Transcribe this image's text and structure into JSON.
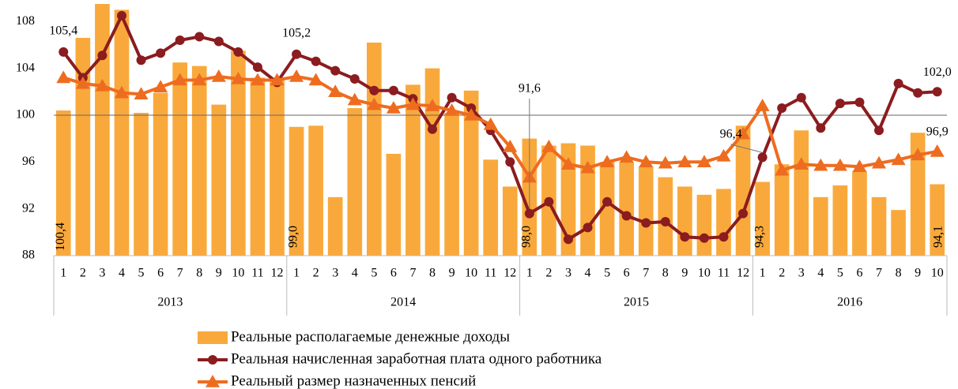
{
  "chart_data": {
    "type": "combo",
    "categories": [
      "1",
      "2",
      "3",
      "4",
      "5",
      "6",
      "7",
      "8",
      "9",
      "10",
      "11",
      "12",
      "1",
      "2",
      "3",
      "4",
      "5",
      "6",
      "7",
      "8",
      "9",
      "10",
      "11",
      "12",
      "1",
      "2",
      "3",
      "4",
      "5",
      "6",
      "7",
      "8",
      "9",
      "10",
      "11",
      "12",
      "1",
      "2",
      "3",
      "4",
      "5",
      "6",
      "7",
      "8",
      "9",
      "10"
    ],
    "x_groups": [
      "2013",
      "2014",
      "2015",
      "2016"
    ],
    "ylim": [
      88,
      109.5
    ],
    "yticks": [
      88,
      92,
      96,
      100,
      104,
      108
    ],
    "hline": 100,
    "series": [
      {
        "name": "Реальные располагаемые денежные доходы",
        "type": "bar",
        "color": "#f9a93b",
        "values": [
          100.4,
          106.6,
          109.5,
          109.0,
          100.2,
          101.9,
          104.5,
          104.2,
          100.9,
          105.5,
          103.2,
          103.2,
          99.0,
          99.1,
          93.0,
          100.6,
          106.2,
          96.7,
          102.6,
          104.0,
          100.2,
          102.1,
          96.2,
          93.9,
          98.0,
          97.4,
          97.6,
          97.4,
          96.0,
          96.0,
          95.6,
          94.7,
          93.9,
          93.2,
          93.7,
          99.1,
          94.3,
          95.8,
          98.7,
          93.0,
          94.0,
          95.2,
          93.0,
          91.9,
          98.5,
          94.1
        ],
        "value_labels": [
          "100,4",
          null,
          null,
          null,
          null,
          null,
          null,
          null,
          null,
          null,
          null,
          null,
          "99,0",
          null,
          null,
          null,
          null,
          null,
          null,
          null,
          null,
          null,
          null,
          null,
          "98,0",
          null,
          null,
          null,
          null,
          null,
          null,
          null,
          null,
          null,
          null,
          null,
          "94,3",
          null,
          null,
          null,
          null,
          null,
          null,
          null,
          null,
          "94,1"
        ]
      },
      {
        "name": "Реальная начисленная заработная плата одного работника",
        "type": "line",
        "marker": "circle",
        "color": "#8b1c1f",
        "values": [
          105.4,
          103.2,
          105.1,
          108.5,
          104.7,
          105.3,
          106.4,
          106.7,
          106.3,
          105.4,
          104.1,
          102.8,
          105.2,
          104.6,
          103.8,
          103.1,
          102.1,
          102.1,
          101.4,
          98.8,
          101.5,
          100.6,
          98.7,
          96.0,
          91.6,
          92.6,
          89.4,
          90.4,
          92.6,
          91.4,
          90.8,
          90.9,
          89.6,
          89.5,
          89.6,
          91.6,
          96.4,
          100.6,
          101.5,
          98.9,
          101.0,
          101.1,
          98.7,
          102.7,
          101.9,
          102.0
        ],
        "value_labels": [
          "105,4",
          null,
          null,
          null,
          null,
          null,
          null,
          null,
          null,
          null,
          null,
          null,
          "105,2",
          null,
          null,
          null,
          null,
          null,
          null,
          null,
          null,
          null,
          null,
          null,
          "91,6",
          null,
          null,
          null,
          null,
          null,
          null,
          null,
          null,
          null,
          null,
          null,
          "96,4",
          null,
          null,
          null,
          null,
          null,
          null,
          null,
          null,
          "102,0"
        ]
      },
      {
        "name": "Реальный размер назначенных пенсий",
        "type": "line",
        "marker": "triangle",
        "color": "#ee6c1f",
        "values": [
          103.2,
          102.7,
          102.5,
          101.9,
          101.8,
          102.4,
          103.0,
          103.0,
          103.3,
          103.1,
          103.0,
          103.0,
          103.3,
          103.0,
          102.0,
          101.3,
          100.9,
          100.6,
          100.9,
          100.8,
          100.4,
          100.0,
          99.2,
          97.3,
          94.7,
          97.3,
          95.8,
          95.5,
          96.0,
          96.4,
          96.0,
          95.9,
          96.0,
          96.0,
          96.5,
          98.4,
          100.8,
          95.3,
          95.8,
          95.7,
          95.7,
          95.6,
          95.9,
          96.2,
          96.6,
          96.9
        ],
        "value_labels": [
          null,
          null,
          null,
          null,
          null,
          null,
          null,
          null,
          null,
          null,
          null,
          null,
          null,
          null,
          null,
          null,
          null,
          null,
          null,
          null,
          null,
          null,
          null,
          null,
          null,
          null,
          null,
          null,
          null,
          null,
          null,
          null,
          null,
          null,
          null,
          null,
          null,
          null,
          null,
          null,
          null,
          null,
          null,
          null,
          null,
          "96,9"
        ]
      }
    ]
  }
}
